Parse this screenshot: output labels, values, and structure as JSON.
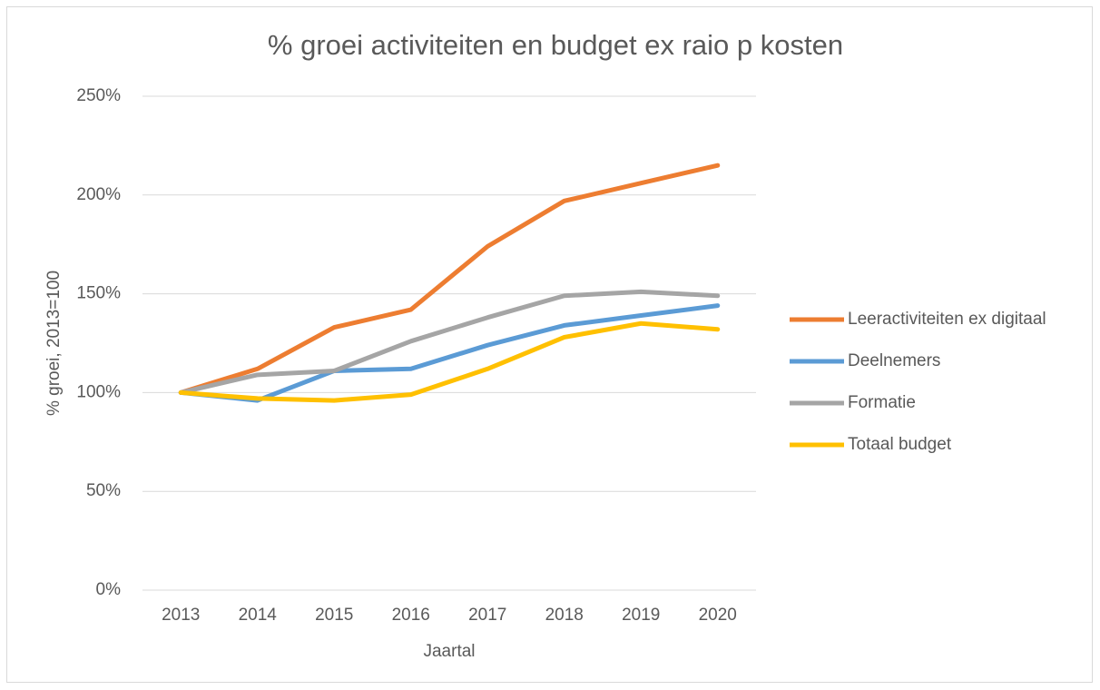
{
  "chart_data": {
    "type": "line",
    "title": "% groei activiteiten en budget ex raio p kosten",
    "xlabel": "Jaartal",
    "ylabel": "% groei, 2013=100",
    "categories": [
      "2013",
      "2014",
      "2015",
      "2016",
      "2017",
      "2018",
      "2019",
      "2020"
    ],
    "series": [
      {
        "name": "Leeractiviteiten ex digitaal",
        "color": "#ed7d31",
        "values": [
          100,
          112,
          133,
          142,
          174,
          197,
          206,
          215
        ]
      },
      {
        "name": "Deelnemers",
        "color": "#5b9bd5",
        "values": [
          100,
          96,
          111,
          112,
          124,
          134,
          139,
          144
        ]
      },
      {
        "name": "Formatie",
        "color": "#a5a5a5",
        "values": [
          100,
          109,
          111,
          126,
          138,
          149,
          151,
          149
        ]
      },
      {
        "name": "Totaal budget",
        "color": "#ffc000",
        "values": [
          100,
          97,
          96,
          99,
          112,
          128,
          135,
          132
        ]
      }
    ],
    "ylim": [
      0,
      250
    ],
    "yticks": [
      {
        "value": 0,
        "label": "0%"
      },
      {
        "value": 50,
        "label": "50%"
      },
      {
        "value": 100,
        "label": "100%"
      },
      {
        "value": 150,
        "label": "150%"
      },
      {
        "value": 200,
        "label": "200%"
      },
      {
        "value": 250,
        "label": "250%"
      }
    ],
    "grid": true,
    "legend": "right"
  }
}
